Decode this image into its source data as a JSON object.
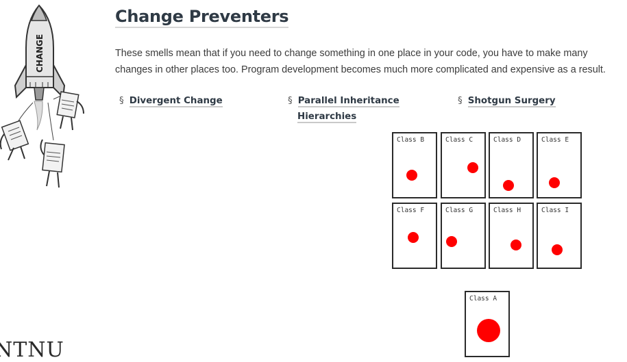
{
  "page": {
    "title": "Change Preventers",
    "intro": "These smells mean that if you need to change something in one place in your code, you have to make many changes in other places too. Program development becomes much more complicated and expensive as a result."
  },
  "illustration": {
    "rocket_text": "CHANGE"
  },
  "links": [
    {
      "symbol": "§",
      "line1": "Divergent Change",
      "line2": ""
    },
    {
      "symbol": "§",
      "line1": "Parallel Inheritance",
      "line2": "Hierarchies"
    },
    {
      "symbol": "§",
      "line1": "Shotgun Surgery",
      "line2": ""
    }
  ],
  "diagram": {
    "cards": [
      "Class B",
      "Class C",
      "Class D",
      "Class E",
      "Class F",
      "Class G",
      "Class H",
      "Class I"
    ],
    "main_card": "Class A",
    "dot_color": "#ff0000"
  },
  "footer": {
    "logo_text": "NTNU"
  }
}
